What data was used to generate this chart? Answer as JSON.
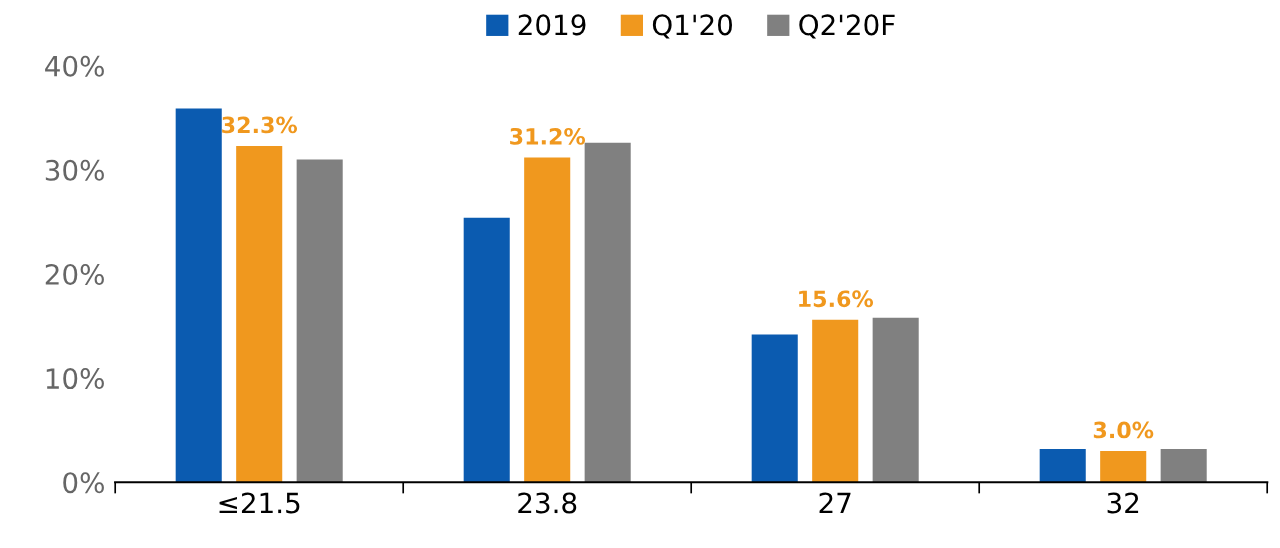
{
  "chart_data": {
    "type": "bar",
    "categories": [
      "≤21.5",
      "23.8",
      "27",
      "32"
    ],
    "series": [
      {
        "name": "2019",
        "color": "#0b5bb0",
        "values": [
          35.9,
          25.4,
          14.2,
          3.2
        ]
      },
      {
        "name": "Q1'20",
        "color": "#f0981e",
        "values": [
          32.3,
          31.2,
          15.6,
          3.0
        ],
        "value_labels": [
          "32.3%",
          "31.2%",
          "15.6%",
          "3.0%"
        ]
      },
      {
        "name": "Q2'20F",
        "color": "#808080",
        "values": [
          31.0,
          32.6,
          15.8,
          3.2
        ]
      }
    ],
    "ylim": [
      0,
      40
    ],
    "yticks": [
      {
        "value": 0,
        "label": "0%"
      },
      {
        "value": 10,
        "label": "10%"
      },
      {
        "value": 20,
        "label": "20%"
      },
      {
        "value": 30,
        "label": "30%"
      },
      {
        "value": 40,
        "label": "40%"
      }
    ],
    "grid": false,
    "legend": "top"
  }
}
